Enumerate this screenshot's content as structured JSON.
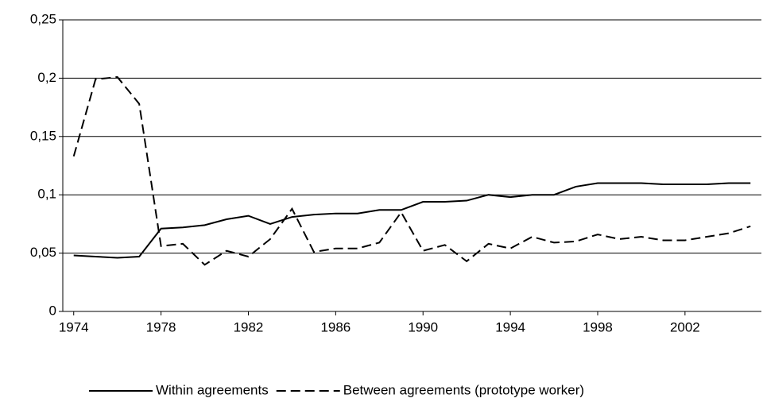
{
  "chart_data": {
    "type": "line",
    "x": [
      1974,
      1975,
      1976,
      1977,
      1978,
      1979,
      1980,
      1981,
      1982,
      1983,
      1984,
      1985,
      1986,
      1987,
      1988,
      1989,
      1990,
      1991,
      1992,
      1993,
      1994,
      1995,
      1996,
      1997,
      1998,
      1999,
      2000,
      2001,
      2002,
      2003,
      2004,
      2005
    ],
    "series": [
      {
        "name": "Within agreements",
        "color": "#000000",
        "dash": "solid",
        "values": [
          0.048,
          0.047,
          0.046,
          0.047,
          0.071,
          0.072,
          0.074,
          0.079,
          0.082,
          0.075,
          0.081,
          0.083,
          0.084,
          0.084,
          0.087,
          0.087,
          0.094,
          0.094,
          0.095,
          0.1,
          0.098,
          0.1,
          0.1,
          0.107,
          0.11,
          0.11,
          0.11,
          0.109,
          0.109,
          0.109,
          0.11,
          0.11
        ]
      },
      {
        "name": "Between agreements (prototype worker)",
        "color": "#000000",
        "dash": "dashed",
        "values": [
          0.133,
          0.199,
          0.201,
          0.178,
          0.056,
          0.058,
          0.04,
          0.052,
          0.047,
          0.062,
          0.088,
          0.051,
          0.054,
          0.054,
          0.059,
          0.085,
          0.052,
          0.057,
          0.043,
          0.058,
          0.054,
          0.064,
          0.059,
          0.06,
          0.066,
          0.062,
          0.064,
          0.061,
          0.061,
          0.064,
          0.067,
          0.073
        ]
      }
    ],
    "xlim": [
      1973.5,
      2005.5
    ],
    "xticks": [
      1974,
      1978,
      1982,
      1986,
      1990,
      1994,
      1998,
      2002
    ],
    "ylim": [
      0,
      0.25
    ],
    "yticks": [
      0,
      {
        "value": 0.05,
        "label": "0,05"
      },
      {
        "value": 0.1,
        "label": "0,1"
      },
      {
        "value": 0.15,
        "label": "0,15"
      },
      {
        "value": 0.2,
        "label": "0,2"
      },
      {
        "value": 0.25,
        "label": "0,25"
      }
    ],
    "grid": true,
    "legend": "bottom"
  }
}
